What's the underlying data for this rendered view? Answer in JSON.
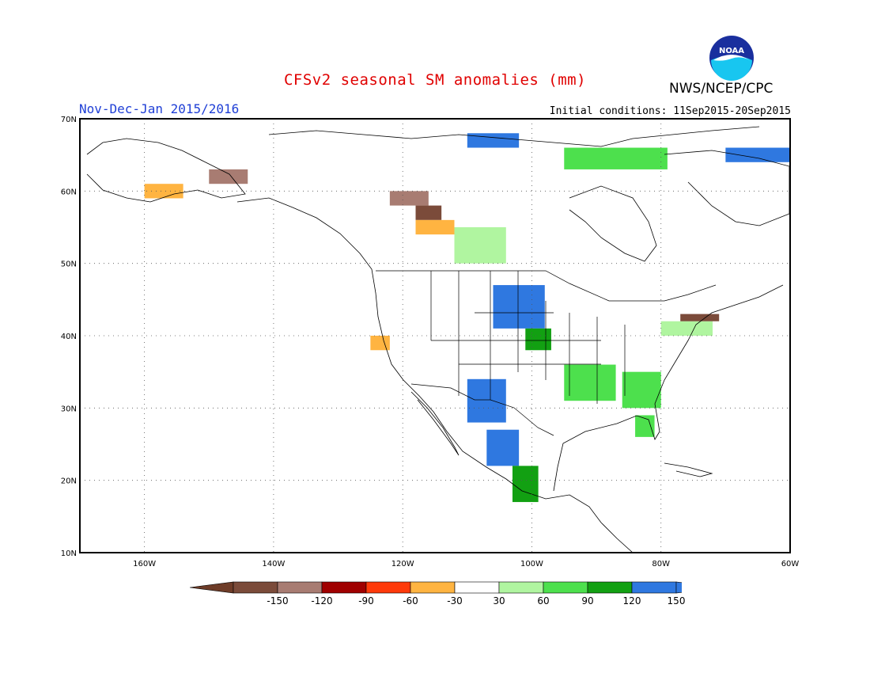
{
  "header": {
    "title": "CFSv2 seasonal SM anomalies (mm)",
    "agency": "NWS/NCEP/CPC",
    "period": "Nov-Dec-Jan 2015/2016",
    "initial_conditions": "Initial conditions: 11Sep2015-20Sep2015",
    "logo_text": "NOAA"
  },
  "map": {
    "lat_labels": [
      "70N",
      "60N",
      "50N",
      "40N",
      "30N",
      "20N",
      "10N"
    ],
    "lon_labels": [
      "160W",
      "140W",
      "120W",
      "100W",
      "80W",
      "60W"
    ],
    "lat_range": [
      10,
      70
    ],
    "lon_range": [
      -170,
      -60
    ],
    "gridlines": "dotted",
    "anomaly_patches": [
      {
        "lon": -106,
        "lat": 47,
        "w": 8,
        "h": 6,
        "bin": "120-150"
      },
      {
        "lon": -110,
        "lat": 34,
        "w": 6,
        "h": 6,
        "bin": "120-150"
      },
      {
        "lon": -107,
        "lat": 27,
        "w": 5,
        "h": 5,
        "bin": "120-150"
      },
      {
        "lon": -101,
        "lat": 41,
        "w": 4,
        "h": 3,
        "bin": "90-120"
      },
      {
        "lon": -95,
        "lat": 36,
        "w": 8,
        "h": 5,
        "bin": "60-90"
      },
      {
        "lon": -86,
        "lat": 35,
        "w": 6,
        "h": 5,
        "bin": "60-90"
      },
      {
        "lon": -84,
        "lat": 29,
        "w": 3,
        "h": 3,
        "bin": "60-90"
      },
      {
        "lon": -112,
        "lat": 55,
        "w": 8,
        "h": 5,
        "bin": "30-60"
      },
      {
        "lon": -95,
        "lat": 66,
        "w": 16,
        "h": 3,
        "bin": "60-90"
      },
      {
        "lon": -80,
        "lat": 42,
        "w": 8,
        "h": 2,
        "bin": "30-60"
      },
      {
        "lon": -103,
        "lat": 22,
        "w": 4,
        "h": 5,
        "bin": "90-120"
      },
      {
        "lon": -122,
        "lat": 60,
        "w": 6,
        "h": 2,
        "bin": "-150--120"
      },
      {
        "lon": -118,
        "lat": 58,
        "w": 4,
        "h": 2,
        "bin": "-150 or less"
      },
      {
        "lon": -118,
        "lat": 56,
        "w": 6,
        "h": 2,
        "bin": "-60--30"
      },
      {
        "lon": -160,
        "lat": 61,
        "w": 6,
        "h": 2,
        "bin": "-60--30"
      },
      {
        "lon": -150,
        "lat": 63,
        "w": 6,
        "h": 2,
        "bin": "-150--120"
      },
      {
        "lon": -110,
        "lat": 68,
        "w": 8,
        "h": 2,
        "bin": "120-150"
      },
      {
        "lon": -70,
        "lat": 66,
        "w": 12,
        "h": 2,
        "bin": "120-150"
      },
      {
        "lon": -125,
        "lat": 40,
        "w": 3,
        "h": 2,
        "bin": "-60--30"
      },
      {
        "lon": -77,
        "lat": 43,
        "w": 6,
        "h": 1,
        "bin": "-150 or less"
      }
    ]
  },
  "legend": {
    "labels": [
      "-150",
      "-120",
      "-90",
      "-60",
      "-30",
      "30",
      "60",
      "90",
      "120",
      "150"
    ],
    "colors": [
      "#7b4b3a",
      "#a87c72",
      "#a00000",
      "#ff3a0a",
      "#ffb441",
      "#ffffff",
      "#b0f5a0",
      "#4de04d",
      "#12a012",
      "#2f78e0",
      "#2f78e0"
    ],
    "under_color": "#6e3c28",
    "over_color": "#2f78e0"
  }
}
